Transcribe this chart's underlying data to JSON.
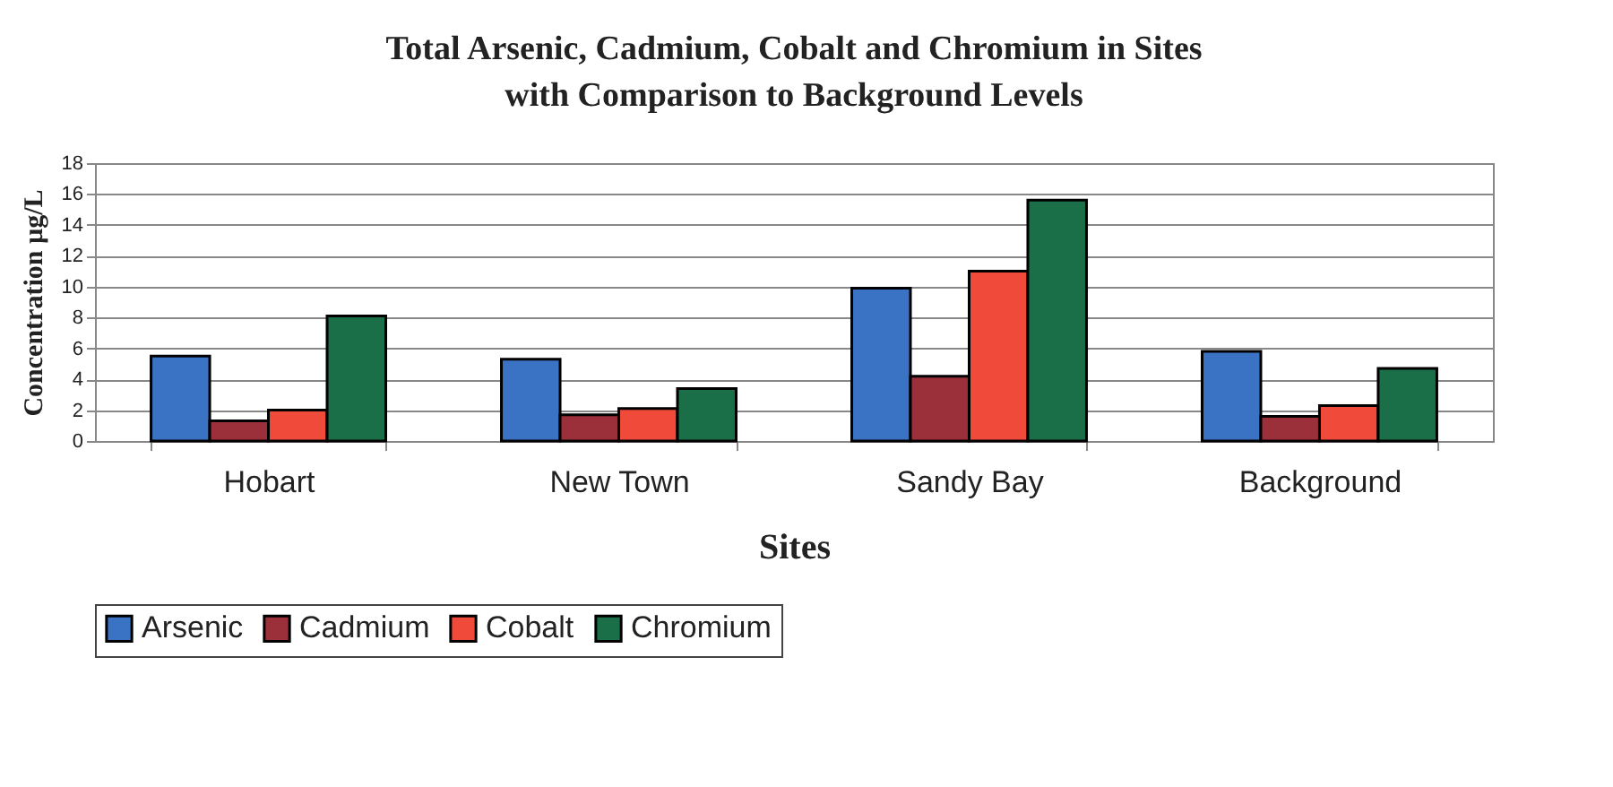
{
  "chart_data": {
    "type": "bar",
    "title": "Total Arsenic, Cadmium, Cobalt and Chromium in Sites with Comparison to Background Levels",
    "xlabel": "Sites",
    "ylabel": "Concentration µg/L",
    "categories": [
      "Hobart",
      "New Town",
      "Sandy Bay",
      "Background"
    ],
    "series": [
      {
        "name": "Arsenic",
        "color": "#3a72c4",
        "values": [
          5.5,
          5.3,
          9.9,
          5.8
        ]
      },
      {
        "name": "Cadmium",
        "color": "#9b2f3a",
        "values": [
          1.3,
          1.7,
          4.2,
          1.6
        ]
      },
      {
        "name": "Cobalt",
        "color": "#f04a3a",
        "values": [
          2.0,
          2.1,
          11.0,
          2.3
        ]
      },
      {
        "name": "Chromium",
        "color": "#1a6e48",
        "values": [
          8.1,
          3.4,
          15.6,
          4.7
        ]
      }
    ],
    "ylim": [
      0,
      18
    ],
    "yticks": [
      0,
      2,
      4,
      6,
      8,
      10,
      12,
      14,
      16,
      18
    ],
    "grid": "y",
    "legend": "bottom"
  }
}
